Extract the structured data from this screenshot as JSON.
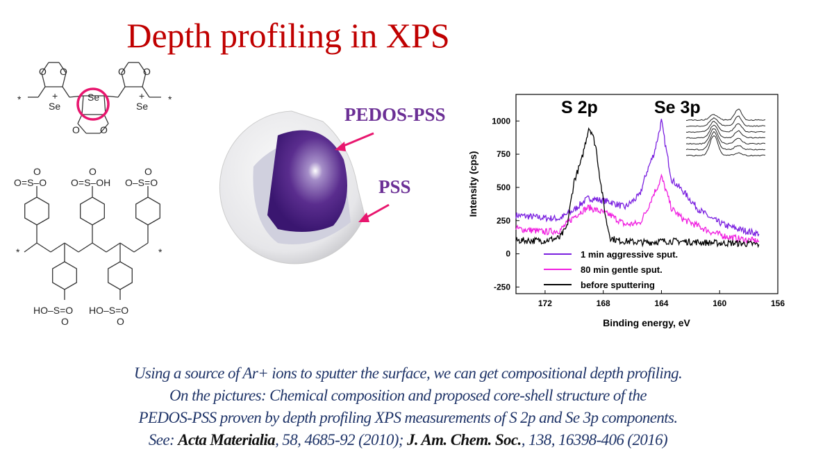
{
  "slide": {
    "title": "Depth profiling in XPS",
    "labels": {
      "core": "PEDOS-PSS",
      "shell": "PSS"
    },
    "caption": {
      "line1": "Using a source of Ar+ ions to sputter the surface, we can get compositional depth profiling.",
      "line2": "On the pictures: Chemical composition and proposed core-shell structure of the",
      "line3": "PEDOS-PSS proven by depth profiling XPS measurements of S 2p and Se 3p components.",
      "line4_prefix": "See: ",
      "ref1_journal": "Acta Materialia",
      "ref1_details": ", 58, 4685-92 (2010); ",
      "ref2_journal": "J. Am. Chem. Soc.",
      "ref2_details": ", 138, 16398-406 (2016)"
    },
    "structure": {
      "atoms_pedos": [
        "O",
        "O",
        "O",
        "O",
        "O",
        "O",
        "Se",
        "Se",
        "Se",
        "+",
        "+",
        "*",
        "*"
      ],
      "atoms_pss": [
        "O=S–O",
        "O",
        "O=S–OH",
        "O",
        "O–S=O",
        "O",
        "HO–S=O",
        "O",
        "HO–S=O",
        "O",
        "*",
        "*"
      ],
      "highlight_color": "#e8166e"
    },
    "colors": {
      "title": "#c00000",
      "label": "#6b2f95",
      "caption": "#1f3468",
      "arrow": "#e8166e"
    }
  },
  "chart_data": {
    "type": "line",
    "xlabel": "Binding energy, eV",
    "ylabel": "Intensity (cps)",
    "xlim": [
      174,
      156
    ],
    "ylim": [
      -300,
      1200
    ],
    "xticks": [
      172,
      168,
      164,
      160,
      156
    ],
    "yticks": [
      -250,
      0,
      250,
      500,
      750,
      1000
    ],
    "annotations": [
      "S 2p",
      "Se 3p"
    ],
    "legend_position": "bottom-left",
    "series": [
      {
        "name": "1 min aggressive sput.",
        "color": "#7a1fe0",
        "x": [
          174,
          172,
          171,
          170,
          169.5,
          169,
          168.5,
          167.5,
          166.5,
          165.5,
          165,
          164.5,
          164.2,
          164,
          163.7,
          163.3,
          162.5,
          161.5,
          160.5,
          159.5,
          158.5,
          157.3
        ],
        "y": [
          290,
          270,
          265,
          330,
          380,
          420,
          410,
          390,
          350,
          440,
          620,
          760,
          900,
          1000,
          800,
          560,
          470,
          340,
          260,
          210,
          180,
          150
        ]
      },
      {
        "name": "80 min gentle sput.",
        "color": "#f01de0",
        "x": [
          174,
          172,
          171,
          170,
          169.5,
          169,
          168.5,
          167.5,
          166.5,
          165.5,
          165,
          164.5,
          164.2,
          164,
          163.7,
          163.3,
          162.5,
          161.5,
          160.5,
          159.5,
          158.5,
          157.3
        ],
        "y": [
          190,
          165,
          175,
          280,
          320,
          350,
          330,
          290,
          220,
          230,
          330,
          460,
          520,
          580,
          480,
          340,
          260,
          210,
          160,
          130,
          110,
          95
        ]
      },
      {
        "name": "before sputtering",
        "color": "#000000",
        "x": [
          174,
          172,
          171,
          170.5,
          170,
          169.5,
          169.2,
          169,
          168.8,
          168.5,
          168.2,
          167.8,
          167.5,
          167,
          166,
          165,
          164,
          163,
          162,
          161,
          160,
          159,
          158,
          157.3
        ],
        "y": [
          100,
          100,
          120,
          200,
          550,
          700,
          850,
          950,
          920,
          800,
          550,
          250,
          120,
          100,
          90,
          85,
          95,
          95,
          90,
          85,
          80,
          80,
          75,
          70
        ]
      }
    ],
    "inset": {
      "trace_count": 7
    }
  }
}
